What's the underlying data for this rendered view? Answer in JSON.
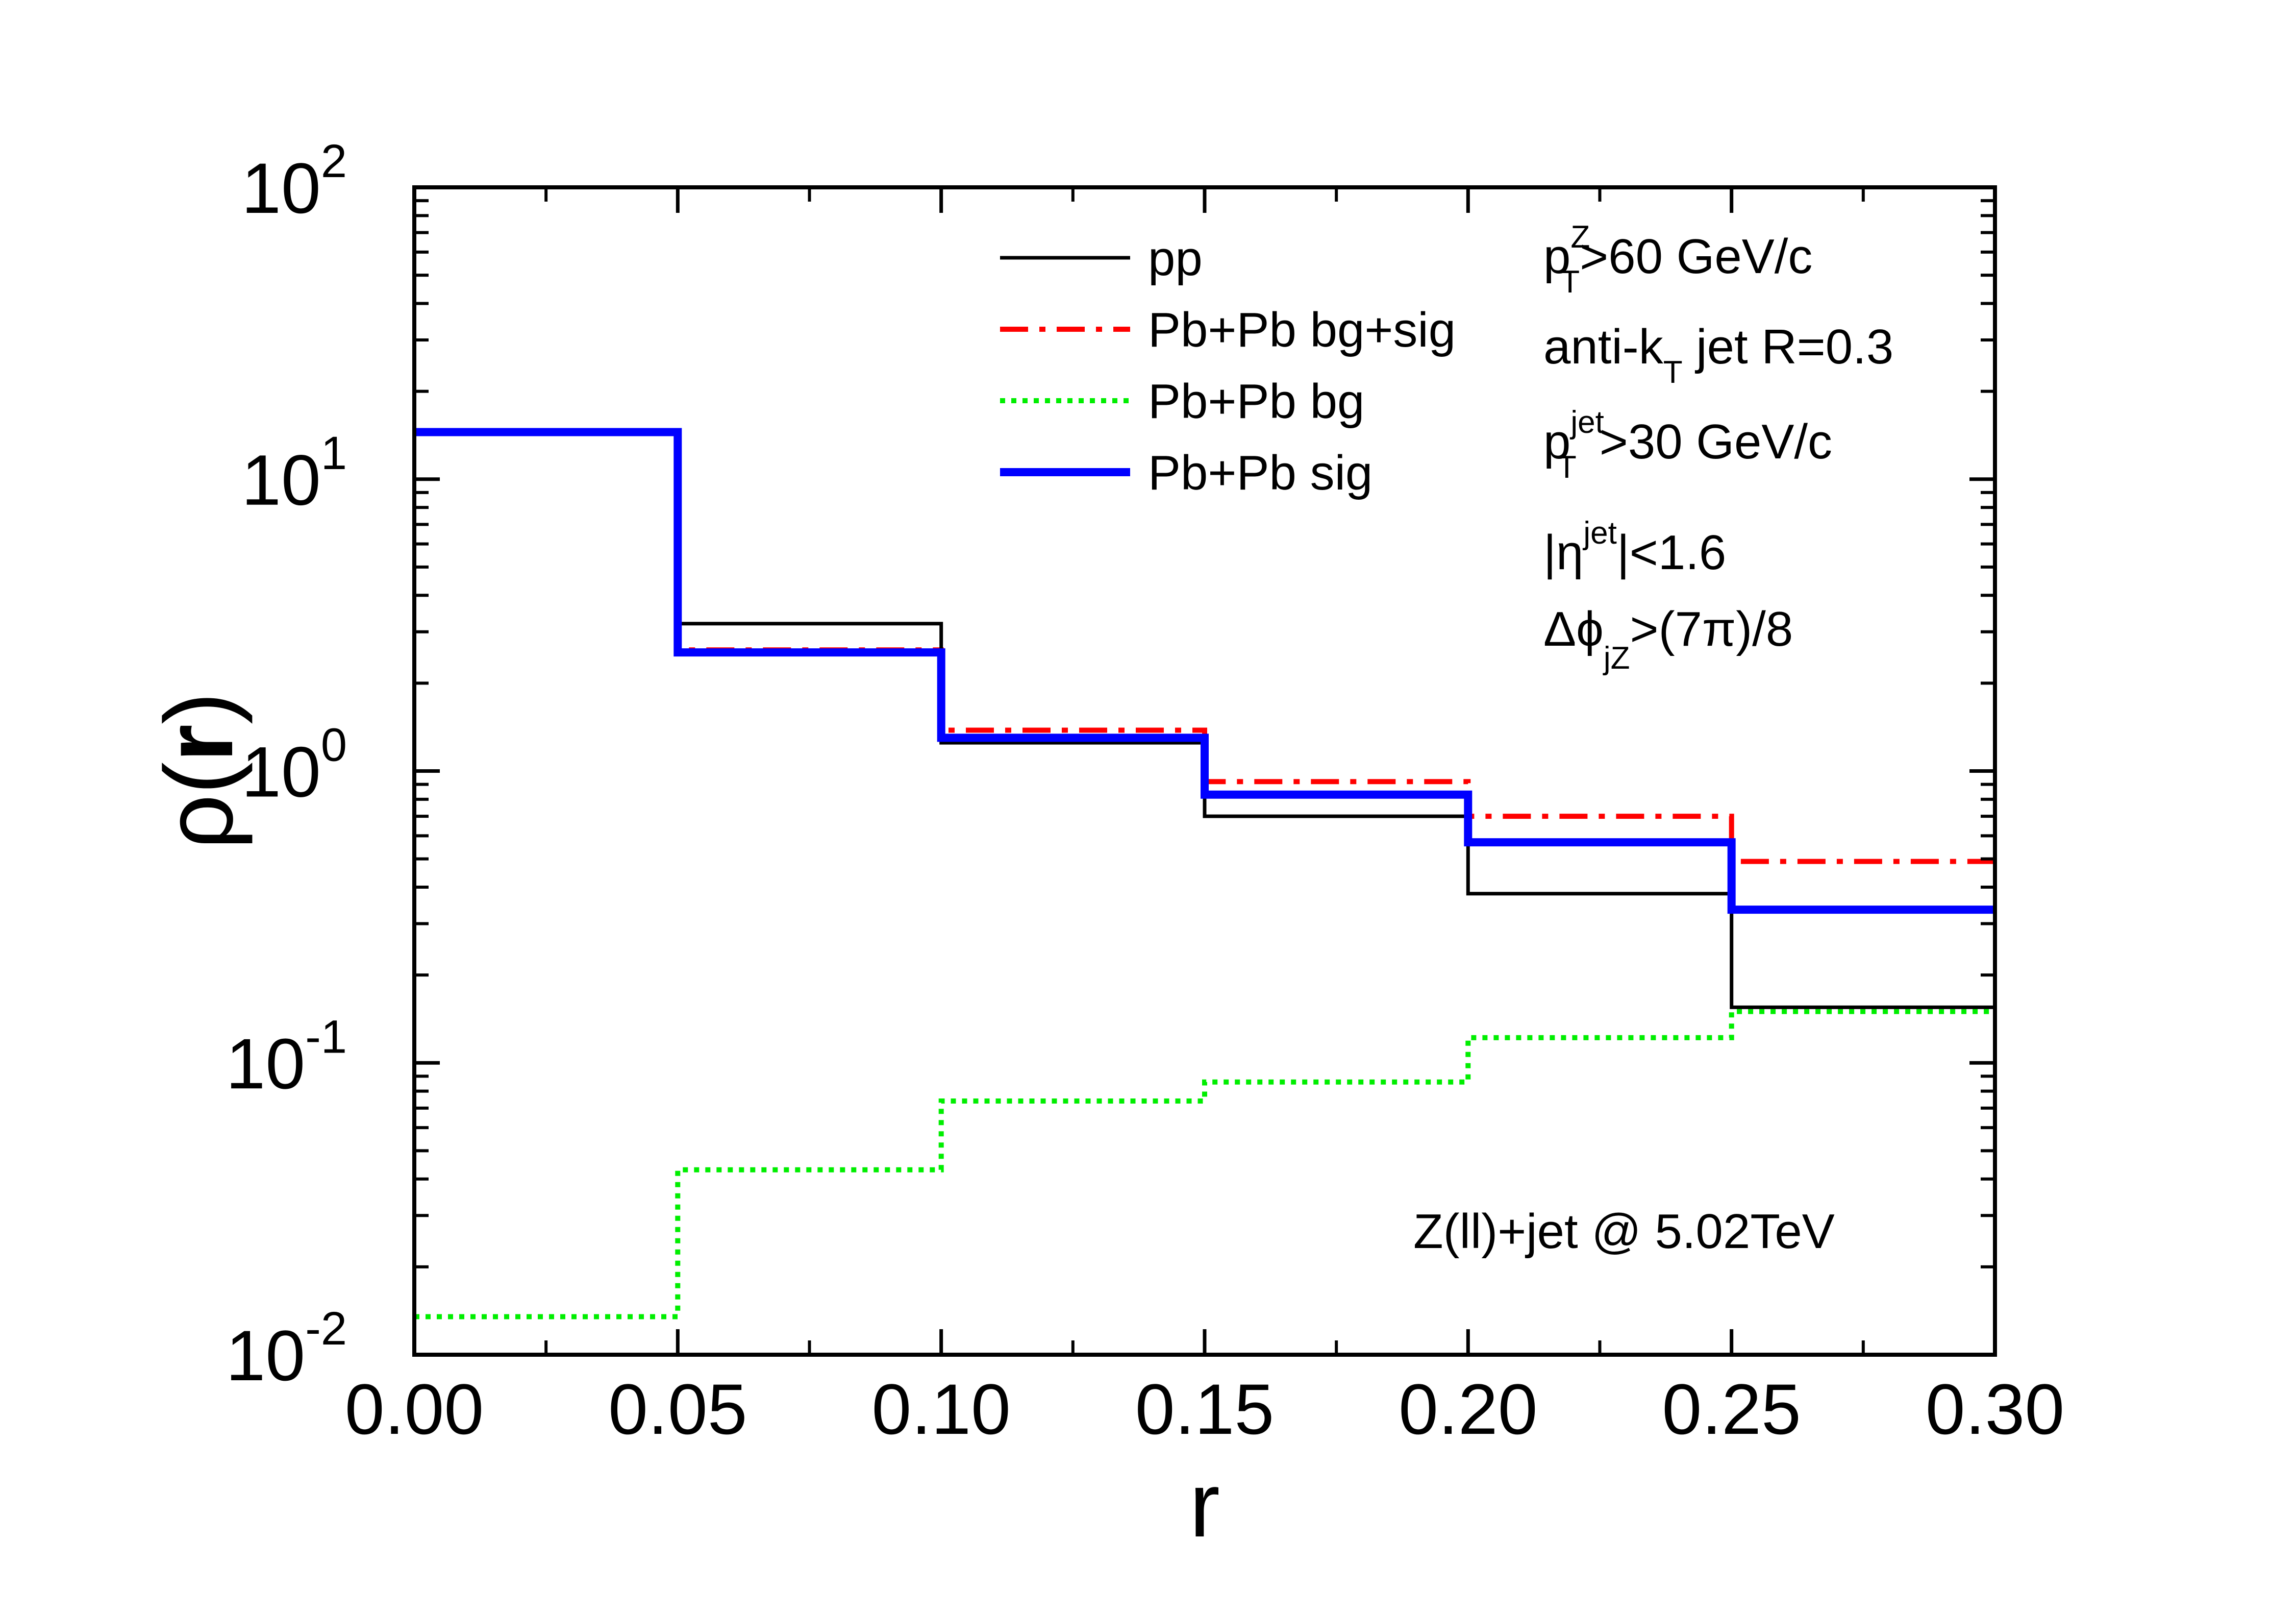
{
  "chart_data": {
    "type": "line",
    "step": true,
    "xlabel": "r",
    "ylabel": "ρ(r)",
    "ylabel_prefix": "ρ",
    "ylabel_open": "(",
    "ylabel_var": "r",
    "ylabel_close": ")",
    "xscale": "linear",
    "yscale": "log",
    "xlim": [
      0.0,
      0.3
    ],
    "ylim": [
      0.01,
      100
    ],
    "x_ticks": [
      0.0,
      0.05,
      0.1,
      0.15,
      0.2,
      0.25,
      0.3
    ],
    "x_tick_labels": [
      "0.00",
      "0.05",
      "0.10",
      "0.15",
      "0.20",
      "0.25",
      "0.30"
    ],
    "y_ticks": [
      {
        "value": 0.01,
        "base": "10",
        "exp": "-2"
      },
      {
        "value": 0.1,
        "base": "10",
        "exp": "-1"
      },
      {
        "value": 1,
        "base": "10",
        "exp": "0"
      },
      {
        "value": 10,
        "base": "10",
        "exp": "1"
      },
      {
        "value": 100,
        "base": "10",
        "exp": "2"
      }
    ],
    "bin_edges": [
      0.0,
      0.05,
      0.1,
      0.15,
      0.2,
      0.25,
      0.3
    ],
    "series": [
      {
        "name": "pp",
        "color": "#000000",
        "style": "solid",
        "values": [
          14.5,
          3.2,
          1.25,
          0.7,
          0.38,
          0.155
        ]
      },
      {
        "name": "Pb+Pb bg+sig",
        "color": "#ff0000",
        "style": "dashdot",
        "values": [
          14.5,
          2.6,
          1.38,
          0.92,
          0.7,
          0.49
        ]
      },
      {
        "name": "Pb+Pb bg",
        "color": "#00ee00",
        "style": "dotted",
        "values": [
          0.0135,
          0.043,
          0.074,
          0.086,
          0.122,
          0.15
        ]
      },
      {
        "name": "Pb+Pb sig",
        "color": "#0000ff",
        "style": "thick",
        "values": [
          14.5,
          2.55,
          1.3,
          0.83,
          0.57,
          0.335
        ]
      }
    ],
    "legend_position": "top-center",
    "annotations": {
      "ptz": {
        "main": "p",
        "sub": "T",
        "sup": "Z",
        "rest": ">60 GeV/c"
      },
      "antikt": {
        "main": "anti-k",
        "sub": "T",
        "rest": " jet   R=0.3"
      },
      "ptjet": {
        "main": "p",
        "sub": "T",
        "sup": "jet",
        "rest": ">30 GeV/c"
      },
      "eta": {
        "main": "|η",
        "sup": "jet",
        "rest": "|<1.6"
      },
      "dphi": {
        "main": "Δϕ",
        "sub": "jZ",
        "rest": ">(7π)/8"
      },
      "system": "Z(ll)+jet @ 5.02TeV"
    }
  }
}
